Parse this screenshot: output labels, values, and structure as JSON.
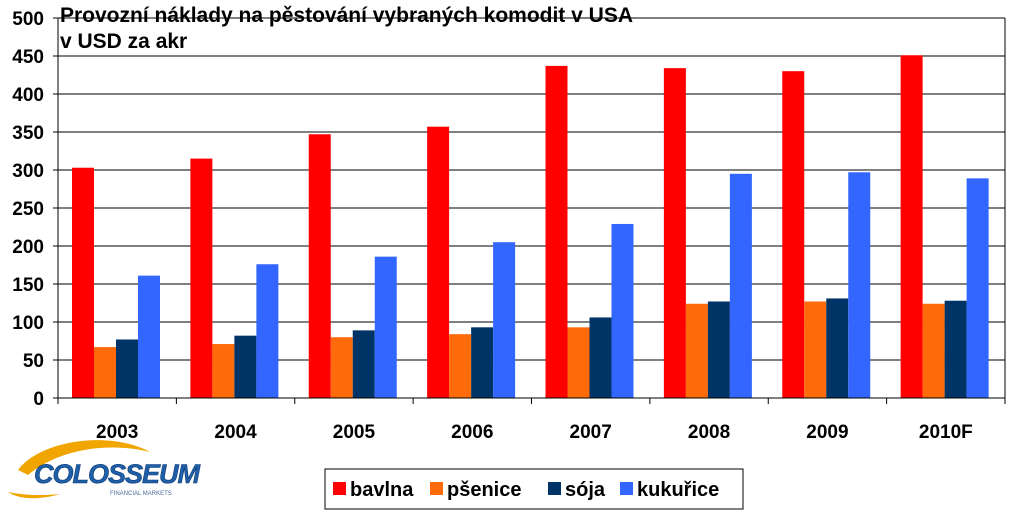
{
  "chart_data": {
    "type": "bar",
    "title": "Provozní náklady na pěstování vybraných komodit v USA",
    "subtitle": "v USD za akr",
    "categories": [
      "2003",
      "2004",
      "2005",
      "2006",
      "2007",
      "2008",
      "2009",
      "2010F"
    ],
    "series": [
      {
        "name": "bavlna",
        "color": "#ff0000",
        "values": [
          303,
          315,
          347,
          357,
          437,
          434,
          430,
          451
        ]
      },
      {
        "name": "pšenice",
        "color": "#ff6a0a",
        "values": [
          67,
          71,
          80,
          84,
          93,
          124,
          127,
          124
        ]
      },
      {
        "name": "sója",
        "color": "#003366",
        "values": [
          77,
          82,
          89,
          93,
          106,
          127,
          131,
          128
        ]
      },
      {
        "name": "kukuřice",
        "color": "#3366ff",
        "values": [
          161,
          176,
          186,
          205,
          229,
          295,
          297,
          289
        ]
      }
    ],
    "yticks": [
      0,
      50,
      100,
      150,
      200,
      250,
      300,
      350,
      400,
      450,
      500
    ],
    "ylim": [
      0,
      500
    ],
    "grid": true,
    "legend_position": "bottom"
  },
  "logo": {
    "text": "COLOSSEUM",
    "tagline": "FINANCIAL MARKETS"
  }
}
